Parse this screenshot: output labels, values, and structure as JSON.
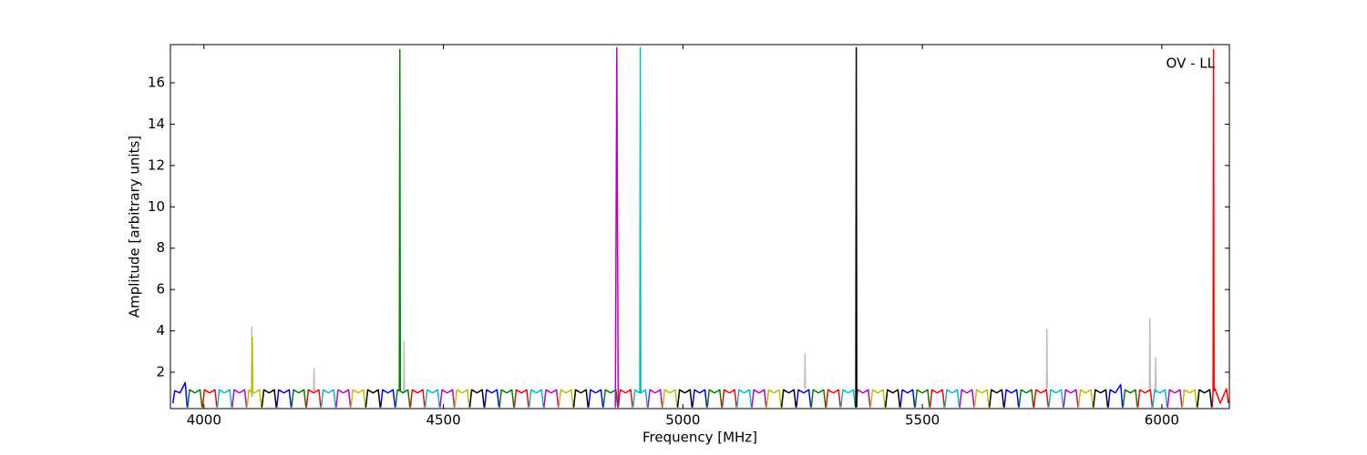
{
  "chart_data": {
    "type": "line",
    "x_label": "Frequency [MHz]",
    "y_label": "Amplitude [arbitrary units]",
    "annotation": "OV - LL",
    "xlim": [
      3930,
      6141
    ],
    "ylim": [
      0.24,
      17.85
    ],
    "xticks": [
      4000,
      4500,
      5000,
      5500,
      6000
    ],
    "yticks": [
      2,
      4,
      6,
      8,
      10,
      12,
      14,
      16
    ],
    "series": [
      {
        "color": "#bfbfbf",
        "x": [
          4099,
          4100,
          4101,
          null,
          4229,
          4230,
          4231,
          null,
          4417,
          4418,
          4419,
          null,
          5254,
          5255,
          5256,
          null,
          5759,
          5760,
          5761,
          null,
          5974,
          5975,
          5976,
          null,
          5986,
          5987,
          5988
        ],
        "values": [
          0.8,
          4.2,
          0.8,
          null,
          1.0,
          2.2,
          1.0,
          null,
          1.0,
          3.5,
          1.0,
          null,
          1.2,
          2.9,
          1.2,
          null,
          1.2,
          4.1,
          1.2,
          null,
          1.2,
          4.6,
          1.2,
          null,
          1.0,
          2.7,
          1.0
        ]
      },
      {
        "color": "#0000ff",
        "x": [
          3935,
          3939,
          3950,
          3961,
          3965,
          null,
          4152,
          4156,
          4167,
          4178,
          4182,
          null,
          4369,
          4373,
          4384,
          4395,
          4399,
          null,
          4586,
          4590,
          4601,
          4612,
          4616,
          null,
          4803,
          4807,
          4818,
          4829,
          4833,
          null,
          5020,
          5024,
          5035,
          5046,
          5050,
          null,
          5237,
          5241,
          5252,
          5263,
          5267,
          null,
          5454,
          5458,
          5469,
          5480,
          5484,
          null,
          5671,
          5675,
          5686,
          5697,
          5701,
          null,
          5888,
          5892,
          5903,
          5914,
          5918
        ],
        "values": [
          0.5,
          1.1,
          1.0,
          1.5,
          0.3,
          null,
          0.3,
          1.15,
          1.0,
          1.15,
          0.3,
          null,
          0.3,
          1.15,
          1.0,
          1.15,
          0.3,
          null,
          0.3,
          1.15,
          1.0,
          1.15,
          0.3,
          null,
          0.3,
          1.15,
          1.0,
          1.15,
          0.3,
          null,
          0.3,
          1.15,
          1.0,
          1.15,
          0.3,
          null,
          0.3,
          1.15,
          1.0,
          1.15,
          0.3,
          null,
          0.3,
          1.15,
          1.0,
          1.15,
          0.3,
          null,
          0.3,
          1.15,
          1.0,
          1.15,
          0.3,
          null,
          0.3,
          1.15,
          1.0,
          1.4,
          0.3
        ]
      },
      {
        "color": "#008000",
        "x": [
          3966,
          3970,
          3981,
          3992,
          3996,
          null,
          4183,
          4187,
          4198,
          4209,
          4213,
          null,
          4400,
          4404,
          4408,
          4409,
          4410,
          4415,
          4426,
          4430,
          null,
          4617,
          4621,
          4632,
          4643,
          4647,
          null,
          4834,
          4838,
          4849,
          4860,
          4864,
          null,
          5051,
          5055,
          5066,
          5077,
          5081,
          null,
          5268,
          5272,
          5283,
          5294,
          5298,
          null,
          5485,
          5489,
          5500,
          5511,
          5515,
          null,
          5702,
          5706,
          5717,
          5728,
          5732,
          null,
          5919,
          5923,
          5934,
          5945,
          5949
        ],
        "values": [
          0.3,
          1.15,
          1.0,
          1.15,
          0.3,
          null,
          0.3,
          1.15,
          1.0,
          1.15,
          0.3,
          null,
          0.3,
          1.15,
          1.1,
          17.6,
          1.1,
          1.0,
          1.15,
          0.3,
          null,
          0.3,
          1.15,
          1.0,
          1.15,
          0.3,
          null,
          0.3,
          1.15,
          1.0,
          1.15,
          0.3,
          null,
          0.3,
          1.15,
          1.0,
          1.15,
          0.3,
          null,
          0.3,
          1.15,
          1.0,
          1.15,
          0.3,
          null,
          0.3,
          1.15,
          1.0,
          1.15,
          0.3,
          null,
          0.3,
          1.15,
          1.0,
          1.15,
          0.3,
          null,
          0.3,
          1.15,
          1.0,
          1.15,
          0.3
        ]
      },
      {
        "color": "#ff0000",
        "x": [
          3997,
          4001,
          4012,
          4023,
          4027,
          null,
          4214,
          4218,
          4229,
          4240,
          4244,
          null,
          4431,
          4435,
          4446,
          4457,
          4461,
          null,
          4648,
          4652,
          4663,
          4674,
          4678,
          null,
          4865,
          4869,
          4880,
          4891,
          4895,
          null,
          5082,
          5086,
          5097,
          5108,
          5112,
          null,
          5299,
          5303,
          5314,
          5325,
          5329,
          null,
          5516,
          5520,
          5531,
          5542,
          5546,
          null,
          5733,
          5737,
          5748,
          5759,
          5763,
          null,
          5950,
          5954,
          5965,
          5976,
          5980,
          null,
          6105,
          6107,
          6108,
          6109,
          6111,
          6122,
          6135,
          6139
        ],
        "values": [
          0.3,
          1.15,
          1.0,
          1.15,
          0.3,
          null,
          0.3,
          1.15,
          1.0,
          1.15,
          0.3,
          null,
          0.3,
          1.15,
          1.0,
          1.15,
          0.3,
          null,
          0.3,
          1.15,
          1.0,
          1.15,
          0.3,
          null,
          0.3,
          1.15,
          1.0,
          1.15,
          0.3,
          null,
          0.3,
          1.15,
          1.0,
          1.15,
          0.3,
          null,
          0.3,
          1.15,
          1.0,
          1.15,
          0.3,
          null,
          0.3,
          1.15,
          1.0,
          1.15,
          0.3,
          null,
          0.3,
          1.15,
          1.0,
          1.15,
          0.3,
          null,
          0.3,
          1.15,
          1.0,
          1.15,
          0.3,
          null,
          0.3,
          1.1,
          17.6,
          1.1,
          1.2,
          0.5,
          1.2,
          0.5
        ]
      },
      {
        "color": "#00bfbf",
        "x": [
          4028,
          4032,
          4043,
          4054,
          4058,
          null,
          4245,
          4249,
          4260,
          4271,
          4275,
          null,
          4462,
          4466,
          4477,
          4488,
          4492,
          null,
          4679,
          4683,
          4694,
          4705,
          4709,
          null,
          4896,
          4900,
          4910,
          4911,
          4912,
          4922,
          4926,
          null,
          5113,
          5117,
          5128,
          5139,
          5143,
          null,
          5330,
          5334,
          5345,
          5356,
          5360,
          null,
          5547,
          5551,
          5562,
          5573,
          5577,
          null,
          5764,
          5768,
          5779,
          5790,
          5794,
          null,
          5981,
          5985,
          5996,
          6007,
          6011
        ],
        "values": [
          0.3,
          1.15,
          1.0,
          1.15,
          0.3,
          null,
          0.3,
          1.15,
          1.0,
          1.15,
          0.3,
          null,
          0.3,
          1.15,
          1.0,
          1.15,
          0.3,
          null,
          0.3,
          1.15,
          1.0,
          1.15,
          0.3,
          null,
          0.3,
          1.15,
          1.0,
          17.7,
          1.0,
          1.15,
          0.3,
          null,
          0.3,
          1.15,
          1.0,
          1.15,
          0.3,
          null,
          0.3,
          1.15,
          1.0,
          1.15,
          0.3,
          null,
          0.3,
          1.15,
          1.0,
          1.15,
          0.3,
          null,
          0.3,
          1.15,
          1.0,
          1.15,
          0.3,
          null,
          0.3,
          1.15,
          1.0,
          1.15,
          0.3
        ]
      },
      {
        "color": "#bf00bf",
        "x": [
          4059,
          4063,
          4074,
          4085,
          4089,
          null,
          4276,
          4280,
          4291,
          4302,
          4306,
          null,
          4493,
          4497,
          4508,
          4519,
          4523,
          null,
          4710,
          4714,
          4725,
          4736,
          4740,
          null,
          4859,
          4862,
          4865,
          null,
          4927,
          4931,
          4942,
          4953,
          4957,
          null,
          5144,
          5148,
          5159,
          5170,
          5174,
          null,
          5361,
          5365,
          5376,
          5387,
          5391,
          null,
          5578,
          5582,
          5593,
          5604,
          5608,
          null,
          5795,
          5799,
          5810,
          5821,
          5825,
          null,
          6012,
          6016,
          6027,
          6038,
          6042
        ],
        "values": [
          0.3,
          1.15,
          1.0,
          1.15,
          0.3,
          null,
          0.3,
          1.15,
          1.0,
          1.15,
          0.3,
          null,
          0.3,
          1.15,
          1.0,
          1.15,
          0.3,
          null,
          0.3,
          1.15,
          1.0,
          1.15,
          0.3,
          null,
          0.3,
          17.7,
          0.3,
          null,
          0.3,
          1.15,
          1.0,
          1.15,
          0.3,
          null,
          0.3,
          1.15,
          1.0,
          1.15,
          0.3,
          null,
          0.3,
          1.15,
          1.0,
          1.15,
          0.3,
          null,
          0.3,
          1.15,
          1.0,
          1.15,
          0.3,
          null,
          0.3,
          1.15,
          1.0,
          1.15,
          0.3,
          null,
          0.3,
          1.15,
          1.0,
          1.15,
          0.3
        ]
      },
      {
        "color": "#bfbf00",
        "x": [
          4090,
          4094,
          4100,
          4101,
          4102,
          4105,
          4116,
          4120,
          null,
          4307,
          4311,
          4322,
          4333,
          4337,
          null,
          4524,
          4528,
          4539,
          4550,
          4554,
          null,
          4741,
          4745,
          4756,
          4767,
          4771,
          null,
          4958,
          4962,
          4973,
          4984,
          4988,
          null,
          5175,
          5179,
          5190,
          5201,
          5205,
          null,
          5392,
          5396,
          5407,
          5418,
          5422,
          null,
          5609,
          5613,
          5624,
          5635,
          5639,
          null,
          5826,
          5830,
          5841,
          5852,
          5856,
          null,
          6043,
          6047,
          6058,
          6069,
          6073
        ],
        "values": [
          0.3,
          1.15,
          1.0,
          3.7,
          1.0,
          1.0,
          1.15,
          0.3,
          null,
          0.3,
          1.15,
          1.0,
          1.15,
          0.3,
          null,
          0.3,
          1.15,
          1.0,
          1.15,
          0.3,
          null,
          0.3,
          1.15,
          1.0,
          1.15,
          0.3,
          null,
          0.3,
          1.15,
          1.0,
          1.15,
          0.3,
          null,
          0.3,
          1.15,
          1.0,
          1.15,
          0.3,
          null,
          0.3,
          1.15,
          1.0,
          1.15,
          0.3,
          null,
          0.3,
          1.15,
          1.0,
          1.15,
          0.3,
          null,
          0.3,
          1.15,
          1.0,
          1.15,
          0.3,
          null,
          0.3,
          1.15,
          1.0,
          1.15,
          0.3
        ]
      },
      {
        "color": "#000000",
        "x": [
          4121,
          4125,
          4136,
          4147,
          4151,
          null,
          4338,
          4342,
          4353,
          4364,
          4368,
          null,
          4555,
          4559,
          4570,
          4581,
          4585,
          null,
          4772,
          4776,
          4787,
          4798,
          4802,
          null,
          4989,
          4993,
          5004,
          5015,
          5019,
          null,
          5206,
          5210,
          5221,
          5232,
          5236,
          null,
          5361,
          5362,
          5363,
          null,
          5423,
          5427,
          5438,
          5449,
          5453,
          null,
          5640,
          5644,
          5655,
          5666,
          5670,
          null,
          5857,
          5861,
          5872,
          5883,
          5887,
          null,
          6074,
          6078,
          6089,
          6100,
          6104
        ],
        "values": [
          0.3,
          1.15,
          1.0,
          1.15,
          0.3,
          null,
          0.3,
          1.15,
          1.0,
          1.15,
          0.3,
          null,
          0.3,
          1.15,
          1.0,
          1.15,
          0.3,
          null,
          0.3,
          1.15,
          1.0,
          1.15,
          0.3,
          null,
          0.3,
          1.15,
          1.0,
          1.15,
          0.3,
          null,
          0.3,
          1.15,
          1.0,
          1.15,
          0.3,
          null,
          0.3,
          17.7,
          0.3,
          null,
          0.3,
          1.15,
          1.0,
          1.15,
          0.3,
          null,
          0.3,
          1.15,
          1.0,
          1.15,
          0.3,
          null,
          0.3,
          1.15,
          1.0,
          1.15,
          0.3,
          null,
          0.3,
          1.15,
          1.0,
          1.15,
          0.3
        ]
      }
    ]
  }
}
